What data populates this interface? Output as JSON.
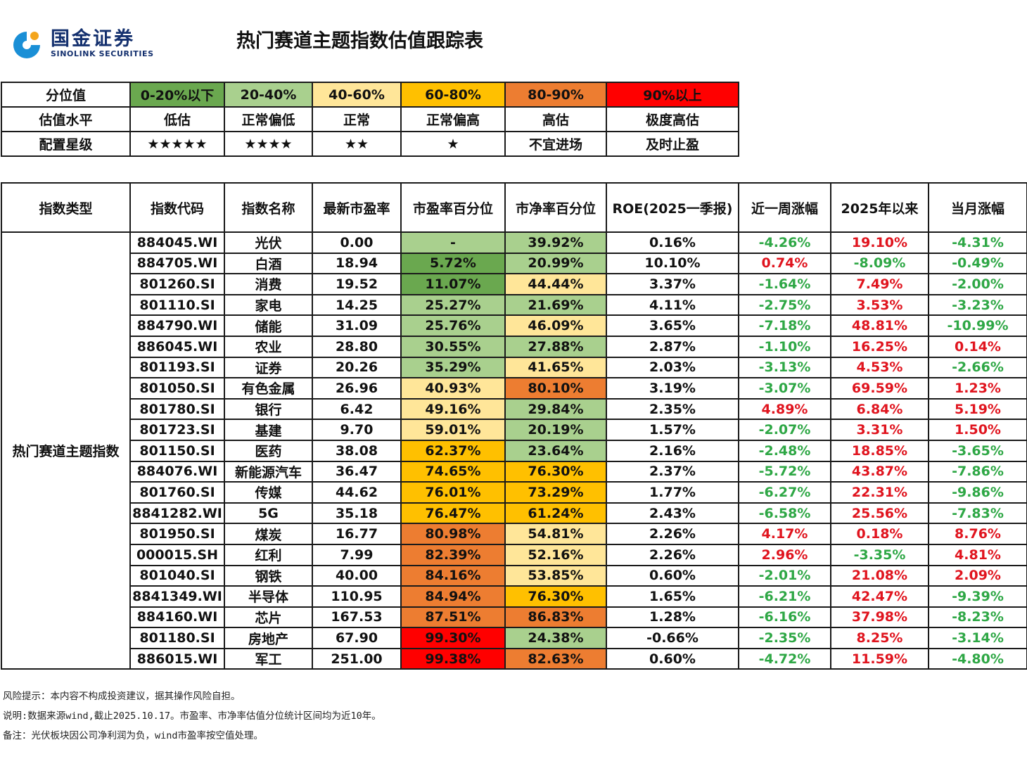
{
  "header": {
    "logo_cn": "国金证券",
    "logo_en": "SINOLINK SECURITIES",
    "title": "热门赛道主题指数估值跟踪表"
  },
  "legend": {
    "rows": [
      {
        "label": "分位值",
        "cells": [
          "0-20%以下",
          "20-40%",
          "40-60%",
          "60-80%",
          "80-90%",
          "90%以上"
        ]
      },
      {
        "label": "估值水平",
        "cells": [
          "低估",
          "正常偏低",
          "正常",
          "正常偏高",
          "高估",
          "极度高估"
        ]
      },
      {
        "label": "配置星级",
        "cells": [
          "★★★★★",
          "★★★★",
          "★★",
          "★",
          "不宜进场",
          "及时止盈"
        ]
      }
    ]
  },
  "table": {
    "headers": [
      "指数类型",
      "指数代码",
      "指数名称",
      "最新市盈率",
      "市盈率百分位",
      "市净率百分位",
      "ROE(2025一季报)",
      "近一周涨幅",
      "2025年以来",
      "当月涨幅"
    ],
    "group_label": "热门赛道主题指数",
    "rows": [
      {
        "code": "884045.WI",
        "name": "光伏",
        "pe": "0.00",
        "pe_pct": "-",
        "pe_band": 2,
        "pb_pct": "39.92%",
        "pb_band": 2,
        "roe": "0.16%",
        "week": "-4.26%",
        "ytd": "19.10%",
        "month": "-4.31%"
      },
      {
        "code": "884705.WI",
        "name": "白酒",
        "pe": "18.94",
        "pe_pct": "5.72%",
        "pe_band": 1,
        "pb_pct": "20.99%",
        "pb_band": 2,
        "roe": "10.10%",
        "week": "0.74%",
        "ytd": "-8.09%",
        "month": "-0.49%"
      },
      {
        "code": "801260.SI",
        "name": "消费",
        "pe": "19.52",
        "pe_pct": "11.07%",
        "pe_band": 1,
        "pb_pct": "44.44%",
        "pb_band": 3,
        "roe": "3.37%",
        "week": "-1.64%",
        "ytd": "7.49%",
        "month": "-2.00%"
      },
      {
        "code": "801110.SI",
        "name": "家电",
        "pe": "14.25",
        "pe_pct": "25.27%",
        "pe_band": 2,
        "pb_pct": "21.69%",
        "pb_band": 2,
        "roe": "4.11%",
        "week": "-2.75%",
        "ytd": "3.53%",
        "month": "-3.23%"
      },
      {
        "code": "884790.WI",
        "name": "储能",
        "pe": "31.09",
        "pe_pct": "25.76%",
        "pe_band": 2,
        "pb_pct": "46.09%",
        "pb_band": 3,
        "roe": "3.65%",
        "week": "-7.18%",
        "ytd": "48.81%",
        "month": "-10.99%"
      },
      {
        "code": "886045.WI",
        "name": "农业",
        "pe": "28.80",
        "pe_pct": "30.55%",
        "pe_band": 2,
        "pb_pct": "27.88%",
        "pb_band": 2,
        "roe": "2.87%",
        "week": "-1.10%",
        "ytd": "16.25%",
        "month": "0.14%"
      },
      {
        "code": "801193.SI",
        "name": "证券",
        "pe": "20.26",
        "pe_pct": "35.29%",
        "pe_band": 2,
        "pb_pct": "41.65%",
        "pb_band": 3,
        "roe": "2.03%",
        "week": "-3.13%",
        "ytd": "4.53%",
        "month": "-2.66%"
      },
      {
        "code": "801050.SI",
        "name": "有色金属",
        "pe": "26.96",
        "pe_pct": "40.93%",
        "pe_band": 3,
        "pb_pct": "80.10%",
        "pb_band": 5,
        "roe": "3.19%",
        "week": "-3.07%",
        "ytd": "69.59%",
        "month": "1.23%"
      },
      {
        "code": "801780.SI",
        "name": "银行",
        "pe": "6.42",
        "pe_pct": "49.16%",
        "pe_band": 3,
        "pb_pct": "29.84%",
        "pb_band": 2,
        "roe": "2.35%",
        "week": "4.89%",
        "ytd": "6.84%",
        "month": "5.19%"
      },
      {
        "code": "801723.SI",
        "name": "基建",
        "pe": "9.70",
        "pe_pct": "59.01%",
        "pe_band": 3,
        "pb_pct": "20.19%",
        "pb_band": 2,
        "roe": "1.57%",
        "week": "-2.07%",
        "ytd": "3.31%",
        "month": "1.50%"
      },
      {
        "code": "801150.SI",
        "name": "医药",
        "pe": "38.08",
        "pe_pct": "62.37%",
        "pe_band": 4,
        "pb_pct": "23.64%",
        "pb_band": 2,
        "roe": "2.16%",
        "week": "-2.48%",
        "ytd": "18.85%",
        "month": "-3.65%"
      },
      {
        "code": "884076.WI",
        "name": "新能源汽车",
        "pe": "36.47",
        "pe_pct": "74.65%",
        "pe_band": 4,
        "pb_pct": "76.30%",
        "pb_band": 4,
        "roe": "2.37%",
        "week": "-5.72%",
        "ytd": "43.87%",
        "month": "-7.86%"
      },
      {
        "code": "801760.SI",
        "name": "传媒",
        "pe": "44.62",
        "pe_pct": "76.01%",
        "pe_band": 4,
        "pb_pct": "73.29%",
        "pb_band": 4,
        "roe": "1.77%",
        "week": "-6.27%",
        "ytd": "22.31%",
        "month": "-9.86%"
      },
      {
        "code": "8841282.WI",
        "name": "5G",
        "pe": "35.18",
        "pe_pct": "76.47%",
        "pe_band": 4,
        "pb_pct": "61.24%",
        "pb_band": 4,
        "roe": "2.43%",
        "week": "-6.58%",
        "ytd": "25.56%",
        "month": "-7.83%"
      },
      {
        "code": "801950.SI",
        "name": "煤炭",
        "pe": "16.77",
        "pe_pct": "80.98%",
        "pe_band": 5,
        "pb_pct": "54.81%",
        "pb_band": 3,
        "roe": "2.26%",
        "week": "4.17%",
        "ytd": "0.18%",
        "month": "8.76%"
      },
      {
        "code": "000015.SH",
        "name": "红利",
        "pe": "7.99",
        "pe_pct": "82.39%",
        "pe_band": 5,
        "pb_pct": "52.16%",
        "pb_band": 3,
        "roe": "2.26%",
        "week": "2.96%",
        "ytd": "-3.35%",
        "month": "4.81%"
      },
      {
        "code": "801040.SI",
        "name": "钢铁",
        "pe": "40.00",
        "pe_pct": "84.16%",
        "pe_band": 5,
        "pb_pct": "53.85%",
        "pb_band": 3,
        "roe": "0.60%",
        "week": "-2.01%",
        "ytd": "21.08%",
        "month": "2.09%"
      },
      {
        "code": "8841349.WI",
        "name": "半导体",
        "pe": "110.95",
        "pe_pct": "84.94%",
        "pe_band": 5,
        "pb_pct": "76.30%",
        "pb_band": 4,
        "roe": "1.65%",
        "week": "-6.21%",
        "ytd": "42.47%",
        "month": "-9.39%"
      },
      {
        "code": "884160.WI",
        "name": "芯片",
        "pe": "167.53",
        "pe_pct": "87.51%",
        "pe_band": 5,
        "pb_pct": "86.83%",
        "pb_band": 5,
        "roe": "1.28%",
        "week": "-6.16%",
        "ytd": "37.98%",
        "month": "-8.23%"
      },
      {
        "code": "801180.SI",
        "name": "房地产",
        "pe": "67.90",
        "pe_pct": "99.30%",
        "pe_band": 6,
        "pb_pct": "24.38%",
        "pb_band": 2,
        "roe": "-0.66%",
        "week": "-2.35%",
        "ytd": "8.25%",
        "month": "-3.14%"
      },
      {
        "code": "886015.WI",
        "name": "军工",
        "pe": "251.00",
        "pe_pct": "99.38%",
        "pe_band": 6,
        "pb_pct": "82.63%",
        "pb_band": 5,
        "roe": "0.60%",
        "week": "-4.72%",
        "ytd": "11.59%",
        "month": "-4.80%"
      }
    ]
  },
  "notes": [
    "风险提示：本内容不构成投资建议，据其操作风险自担。",
    "说明:数据来源wind,截止2025.10.17。市盈率、市净率估值分位统计区间均为近10年。",
    "备注：光伏板块因公司净利润为负，wind市盈率按空值处理。"
  ],
  "colors": {
    "band_1": "#6aa84f",
    "band_2": "#a9d08e",
    "band_3": "#ffe699",
    "band_4": "#ffc000",
    "band_5": "#ed7d31",
    "band_6": "#ff0000",
    "positive_text": "#e0141e",
    "negative_text": "#2ea745",
    "brand": "#14306e"
  }
}
